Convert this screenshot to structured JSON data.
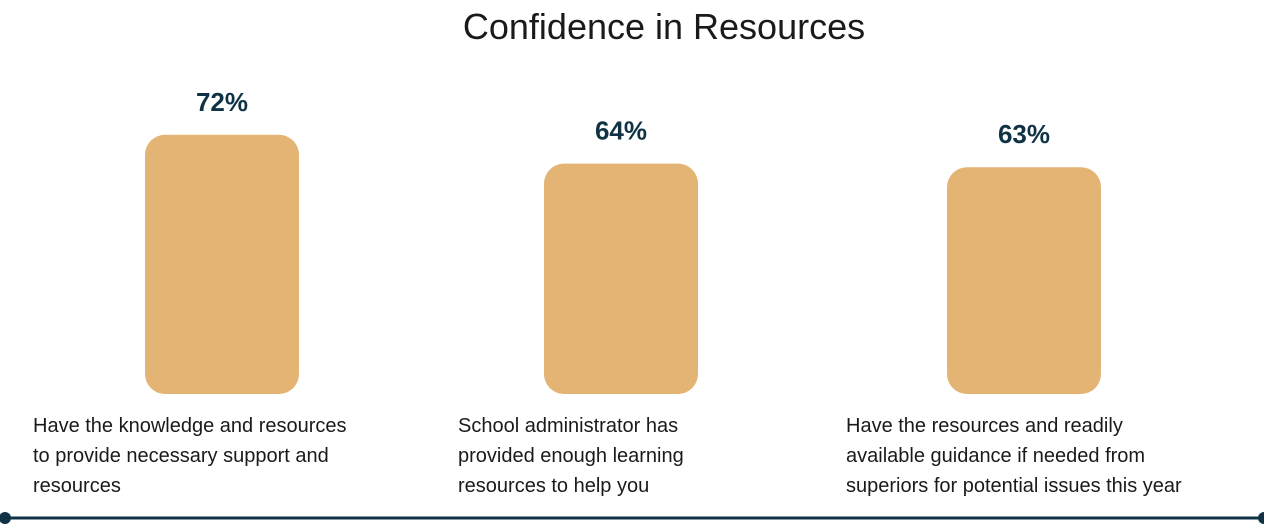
{
  "chart_data": {
    "type": "bar",
    "title": "Confidence in Resources",
    "categories": [
      [
        "Have the knowledge and resources",
        "to provide necessary support and",
        "resources"
      ],
      [
        "School administrator has",
        "provided enough learning",
        "resources to help you"
      ],
      [
        "Have the resources and readily",
        "available guidance if needed from",
        "superiors for potential issues this year"
      ]
    ],
    "values": [
      72,
      64,
      63
    ],
    "value_labels": [
      "72%",
      "64%",
      "63%"
    ],
    "unit": "%",
    "grid": false,
    "legend": "none"
  },
  "colors": {
    "bar": "#E3B473",
    "value_text": "#0F3345",
    "axis_line": "#0F3345",
    "text": "#1a1a1a"
  }
}
